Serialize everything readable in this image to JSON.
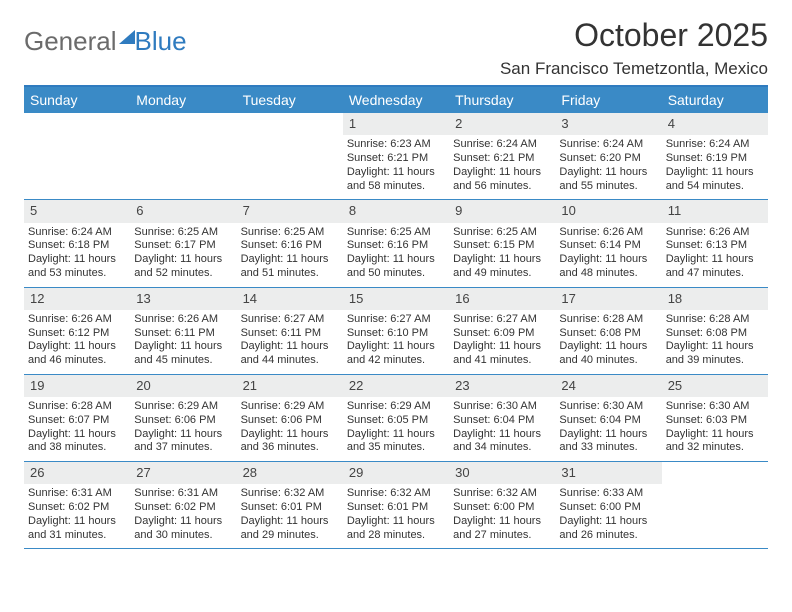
{
  "logo": {
    "part1": "General",
    "part2": "Blue"
  },
  "title": "October 2025",
  "subtitle": "San Francisco Temetzontla, Mexico",
  "colors": {
    "header_bg": "#3a8ac6",
    "header_text": "#ffffff",
    "border": "#2f7bbf",
    "daynum_bg": "#eceded",
    "text": "#333333"
  },
  "day_names": [
    "Sunday",
    "Monday",
    "Tuesday",
    "Wednesday",
    "Thursday",
    "Friday",
    "Saturday"
  ],
  "first_weekday_index": 3,
  "days": [
    {
      "n": 1,
      "sunrise": "6:23 AM",
      "sunset": "6:21 PM",
      "daylight": "11 hours and 58 minutes."
    },
    {
      "n": 2,
      "sunrise": "6:24 AM",
      "sunset": "6:21 PM",
      "daylight": "11 hours and 56 minutes."
    },
    {
      "n": 3,
      "sunrise": "6:24 AM",
      "sunset": "6:20 PM",
      "daylight": "11 hours and 55 minutes."
    },
    {
      "n": 4,
      "sunrise": "6:24 AM",
      "sunset": "6:19 PM",
      "daylight": "11 hours and 54 minutes."
    },
    {
      "n": 5,
      "sunrise": "6:24 AM",
      "sunset": "6:18 PM",
      "daylight": "11 hours and 53 minutes."
    },
    {
      "n": 6,
      "sunrise": "6:25 AM",
      "sunset": "6:17 PM",
      "daylight": "11 hours and 52 minutes."
    },
    {
      "n": 7,
      "sunrise": "6:25 AM",
      "sunset": "6:16 PM",
      "daylight": "11 hours and 51 minutes."
    },
    {
      "n": 8,
      "sunrise": "6:25 AM",
      "sunset": "6:16 PM",
      "daylight": "11 hours and 50 minutes."
    },
    {
      "n": 9,
      "sunrise": "6:25 AM",
      "sunset": "6:15 PM",
      "daylight": "11 hours and 49 minutes."
    },
    {
      "n": 10,
      "sunrise": "6:26 AM",
      "sunset": "6:14 PM",
      "daylight": "11 hours and 48 minutes."
    },
    {
      "n": 11,
      "sunrise": "6:26 AM",
      "sunset": "6:13 PM",
      "daylight": "11 hours and 47 minutes."
    },
    {
      "n": 12,
      "sunrise": "6:26 AM",
      "sunset": "6:12 PM",
      "daylight": "11 hours and 46 minutes."
    },
    {
      "n": 13,
      "sunrise": "6:26 AM",
      "sunset": "6:11 PM",
      "daylight": "11 hours and 45 minutes."
    },
    {
      "n": 14,
      "sunrise": "6:27 AM",
      "sunset": "6:11 PM",
      "daylight": "11 hours and 44 minutes."
    },
    {
      "n": 15,
      "sunrise": "6:27 AM",
      "sunset": "6:10 PM",
      "daylight": "11 hours and 42 minutes."
    },
    {
      "n": 16,
      "sunrise": "6:27 AM",
      "sunset": "6:09 PM",
      "daylight": "11 hours and 41 minutes."
    },
    {
      "n": 17,
      "sunrise": "6:28 AM",
      "sunset": "6:08 PM",
      "daylight": "11 hours and 40 minutes."
    },
    {
      "n": 18,
      "sunrise": "6:28 AM",
      "sunset": "6:08 PM",
      "daylight": "11 hours and 39 minutes."
    },
    {
      "n": 19,
      "sunrise": "6:28 AM",
      "sunset": "6:07 PM",
      "daylight": "11 hours and 38 minutes."
    },
    {
      "n": 20,
      "sunrise": "6:29 AM",
      "sunset": "6:06 PM",
      "daylight": "11 hours and 37 minutes."
    },
    {
      "n": 21,
      "sunrise": "6:29 AM",
      "sunset": "6:06 PM",
      "daylight": "11 hours and 36 minutes."
    },
    {
      "n": 22,
      "sunrise": "6:29 AM",
      "sunset": "6:05 PM",
      "daylight": "11 hours and 35 minutes."
    },
    {
      "n": 23,
      "sunrise": "6:30 AM",
      "sunset": "6:04 PM",
      "daylight": "11 hours and 34 minutes."
    },
    {
      "n": 24,
      "sunrise": "6:30 AM",
      "sunset": "6:04 PM",
      "daylight": "11 hours and 33 minutes."
    },
    {
      "n": 25,
      "sunrise": "6:30 AM",
      "sunset": "6:03 PM",
      "daylight": "11 hours and 32 minutes."
    },
    {
      "n": 26,
      "sunrise": "6:31 AM",
      "sunset": "6:02 PM",
      "daylight": "11 hours and 31 minutes."
    },
    {
      "n": 27,
      "sunrise": "6:31 AM",
      "sunset": "6:02 PM",
      "daylight": "11 hours and 30 minutes."
    },
    {
      "n": 28,
      "sunrise": "6:32 AM",
      "sunset": "6:01 PM",
      "daylight": "11 hours and 29 minutes."
    },
    {
      "n": 29,
      "sunrise": "6:32 AM",
      "sunset": "6:01 PM",
      "daylight": "11 hours and 28 minutes."
    },
    {
      "n": 30,
      "sunrise": "6:32 AM",
      "sunset": "6:00 PM",
      "daylight": "11 hours and 27 minutes."
    },
    {
      "n": 31,
      "sunrise": "6:33 AM",
      "sunset": "6:00 PM",
      "daylight": "11 hours and 26 minutes."
    }
  ],
  "labels": {
    "sunrise_prefix": "Sunrise: ",
    "sunset_prefix": "Sunset: ",
    "daylight_prefix": "Daylight: "
  }
}
